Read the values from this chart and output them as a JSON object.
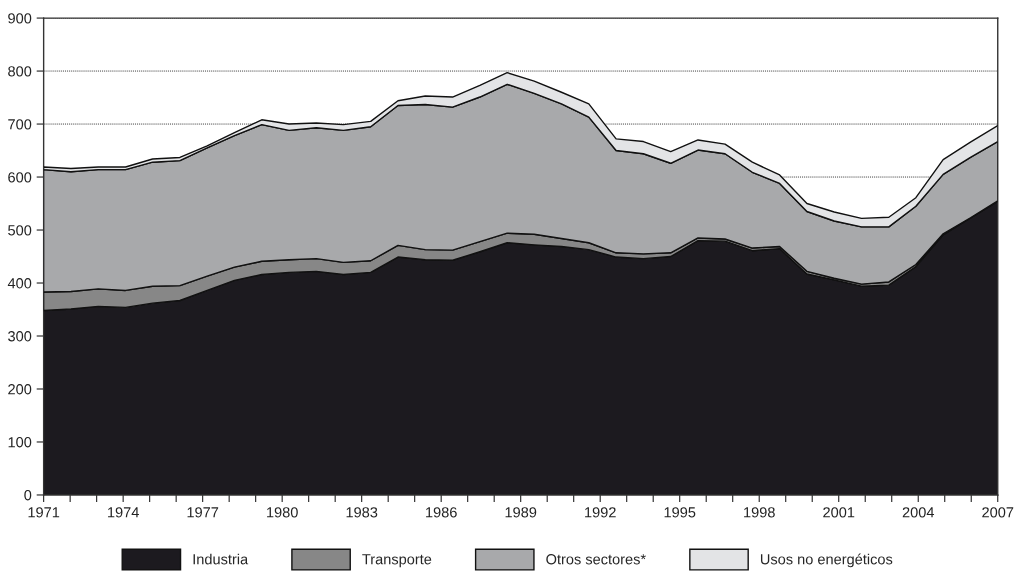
{
  "chart_data": {
    "type": "area",
    "stacked": true,
    "x": [
      1971,
      1972.03,
      1973.06,
      1974.09,
      1975.11,
      1976.14,
      1977.17,
      1978.2,
      1979.23,
      1980.26,
      1981.29,
      1982.31,
      1983.34,
      1984.37,
      1985.4,
      1986.43,
      1987.46,
      1988.49,
      1989.51,
      1990.54,
      1991.57,
      1992.6,
      1993.63,
      1994.66,
      1995.69,
      1996.71,
      1997.74,
      1998.77,
      1999.8,
      2000.83,
      2001.86,
      2002.89,
      2003.91,
      2004.94,
      2005.97,
      2007
    ],
    "series": [
      {
        "name": "Industria",
        "color": "#1c1a1f",
        "values": [
          348,
          351,
          356,
          354,
          362,
          367,
          386,
          405,
          416,
          420,
          422,
          416,
          420,
          449,
          444,
          443,
          459,
          476,
          472,
          469,
          463,
          449,
          446,
          450,
          480,
          479,
          461,
          465,
          417,
          406,
          394,
          396,
          431,
          491,
          523,
          554
        ]
      },
      {
        "name": "Transporte",
        "color": "#878787",
        "values": [
          35,
          33,
          33,
          32,
          32,
          28,
          27,
          25,
          25,
          24,
          24,
          23,
          22,
          22,
          19,
          19,
          19,
          18,
          20,
          15,
          13,
          8,
          9,
          7,
          5,
          4,
          5,
          4,
          5,
          3,
          4,
          6,
          4,
          2,
          0,
          1
        ]
      },
      {
        "name": "Otros sectores*",
        "color": "#a8a9ab",
        "values": [
          231,
          226,
          225,
          228,
          234,
          236,
          242,
          248,
          258,
          244,
          247,
          249,
          253,
          264,
          274,
          270,
          273,
          281,
          266,
          254,
          237,
          193,
          189,
          169,
          166,
          161,
          143,
          119,
          113,
          108,
          108,
          104,
          110,
          112,
          114,
          112
        ]
      },
      {
        "name": "Usos no energéticos",
        "color": "#e3e4e6",
        "values": [
          5,
          6,
          5,
          5,
          6,
          6,
          4,
          6,
          9,
          12,
          9,
          11,
          10,
          9,
          16,
          19,
          22,
          22,
          23,
          22,
          25,
          22,
          23,
          22,
          19,
          18,
          19,
          16,
          15,
          17,
          16,
          18,
          16,
          28,
          29,
          30
        ]
      }
    ],
    "xlim": [
      1971,
      2007
    ],
    "xticks": [
      1971,
      {
        "value": 1972,
        "label": null
      },
      {
        "value": 1973,
        "label": null
      },
      1974,
      {
        "value": 1975,
        "label": null
      },
      {
        "value": 1976,
        "label": null
      },
      1977,
      {
        "value": 1978,
        "label": null
      },
      {
        "value": 1979,
        "label": null
      },
      1980,
      {
        "value": 1981,
        "label": null
      },
      {
        "value": 1982,
        "label": null
      },
      1983,
      {
        "value": 1984,
        "label": null
      },
      {
        "value": 1985,
        "label": null
      },
      1986,
      {
        "value": 1987,
        "label": null
      },
      {
        "value": 1988,
        "label": null
      },
      1989,
      {
        "value": 1990,
        "label": null
      },
      {
        "value": 1991,
        "label": null
      },
      1992,
      {
        "value": 1993,
        "label": null
      },
      {
        "value": 1994,
        "label": null
      },
      1995,
      {
        "value": 1996,
        "label": null
      },
      {
        "value": 1997,
        "label": null
      },
      1998,
      {
        "value": 1999,
        "label": null
      },
      {
        "value": 2000,
        "label": null
      },
      2001,
      {
        "value": 2002,
        "label": null
      },
      {
        "value": 2003,
        "label": null
      },
      2004,
      {
        "value": 2005,
        "label": null
      },
      {
        "value": 2006,
        "label": null
      },
      2007
    ],
    "ylim": [
      0,
      900
    ],
    "yticks": [
      0,
      100,
      200,
      300,
      400,
      500,
      600,
      700,
      800,
      900
    ],
    "grid": "y",
    "legend": "bottom"
  }
}
